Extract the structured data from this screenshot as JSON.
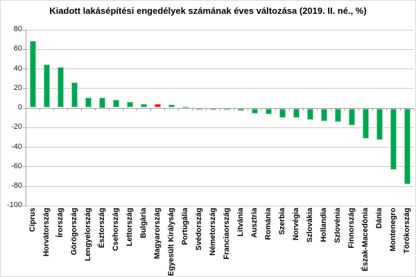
{
  "chart_data": {
    "type": "bar",
    "title": "Kiadott lakásépítési engedélyek számának éves változása (2019. II. né., %)",
    "categories": [
      "Ciprus",
      "Horvátország",
      "Írország",
      "Görögország",
      "Lengyelország",
      "Észtország",
      "Csehország",
      "Lettország",
      "Bulgária",
      "Magyarország",
      "Egyesült Királyság",
      "Portugália",
      "Svédország",
      "Németország",
      "Franciaország",
      "Litvánia",
      "Ausztria",
      "Románia",
      "Szerbia",
      "Norvégia",
      "Szlovákia",
      "Hollandia",
      "Szlovénia",
      "Finnország",
      "Észak-Macedónia",
      "Dánia",
      "Montenegro",
      "Törökország"
    ],
    "values": [
      68,
      44,
      41.5,
      26,
      10.5,
      10,
      8,
      6.3,
      4,
      3.8,
      3.4,
      0.8,
      -2,
      -2,
      -2,
      -2.5,
      -5,
      -6,
      -9.3,
      -9.6,
      -12,
      -13,
      -14,
      -17.5,
      -31,
      -32,
      -62.5,
      -77.5
    ],
    "highlight_category": "Magyarország",
    "bar_color": "#00a551",
    "highlight_color": "#fe0000",
    "ylabel": "",
    "xlabel": "",
    "ylim": [
      -100,
      80
    ],
    "yticks": [
      80,
      60,
      40,
      20,
      0,
      -20,
      -40,
      -60,
      -80,
      -100
    ],
    "grid": true,
    "legend": "none"
  }
}
